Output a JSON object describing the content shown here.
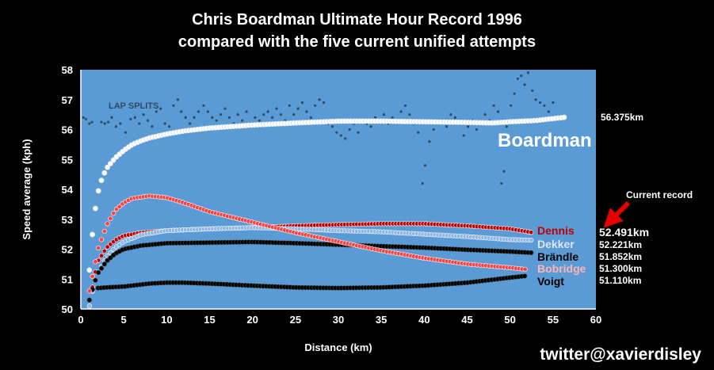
{
  "chart_data": {
    "type": "scatter",
    "title_lines": [
      "Chris Boardman Ultimate Hour Record 1996",
      "compared with the five current unified attempts"
    ],
    "xlabel": "Distance (km)",
    "ylabel": "Speed average (kph)",
    "xlim": [
      0,
      60
    ],
    "ylim": [
      50,
      58
    ],
    "x_ticks": [
      0,
      5,
      10,
      15,
      20,
      25,
      30,
      35,
      40,
      45,
      50,
      55,
      60
    ],
    "y_ticks": [
      50,
      51,
      52,
      53,
      54,
      55,
      56,
      57,
      58
    ],
    "plot_background": "#5b9bd5",
    "grid": false,
    "annotations": {
      "lap_splits_label": "LAP SPLITS",
      "current_record_label": "Current record",
      "boardman_label": "Boardman"
    },
    "series": [
      {
        "name": "Boardman",
        "color": "#ffffff",
        "label_color": "#ffffff",
        "final_value": "56.375km",
        "points": [
          [
            1,
            51.3
          ],
          [
            1.5,
            53.0
          ],
          [
            2,
            53.9
          ],
          [
            2.5,
            54.4
          ],
          [
            3,
            54.7
          ],
          [
            4,
            55.05
          ],
          [
            5,
            55.3
          ],
          [
            6,
            55.5
          ],
          [
            7,
            55.62
          ],
          [
            8,
            55.72
          ],
          [
            10,
            55.85
          ],
          [
            12,
            55.95
          ],
          [
            15,
            56.05
          ],
          [
            20,
            56.15
          ],
          [
            25,
            56.22
          ],
          [
            30,
            56.28
          ],
          [
            35,
            56.28
          ],
          [
            40,
            56.26
          ],
          [
            45,
            56.24
          ],
          [
            48,
            56.22
          ],
          [
            50,
            56.26
          ],
          [
            53,
            56.3
          ],
          [
            56.4,
            56.41
          ]
        ]
      },
      {
        "name": "Dennis",
        "color": "#c00000",
        "label_color": "#c00000",
        "final_value": "52.491km",
        "points": [
          [
            1,
            50.1
          ],
          [
            1.5,
            51.0
          ],
          [
            2,
            51.6
          ],
          [
            3,
            52.05
          ],
          [
            4,
            52.3
          ],
          [
            5,
            52.45
          ],
          [
            7,
            52.55
          ],
          [
            10,
            52.62
          ],
          [
            15,
            52.68
          ],
          [
            20,
            52.72
          ],
          [
            25,
            52.78
          ],
          [
            30,
            52.82
          ],
          [
            35,
            52.85
          ],
          [
            40,
            52.85
          ],
          [
            45,
            52.78
          ],
          [
            50,
            52.68
          ],
          [
            52.5,
            52.56
          ]
        ]
      },
      {
        "name": "Dekker",
        "color": "#8eb4e3",
        "label_color": "#dbe5f1",
        "final_value": "52.221km",
        "points": [
          [
            1,
            50.1
          ],
          [
            1.5,
            50.8
          ],
          [
            2,
            51.2
          ],
          [
            3,
            51.75
          ],
          [
            4,
            52.05
          ],
          [
            5,
            52.25
          ],
          [
            7,
            52.48
          ],
          [
            10,
            52.62
          ],
          [
            15,
            52.68
          ],
          [
            20,
            52.72
          ],
          [
            25,
            52.68
          ],
          [
            30,
            52.62
          ],
          [
            35,
            52.58
          ],
          [
            40,
            52.5
          ],
          [
            45,
            52.42
          ],
          [
            50,
            52.32
          ],
          [
            52.5,
            52.3
          ]
        ]
      },
      {
        "name": "Brändle",
        "color": "#000000",
        "label_color": "#000000",
        "final_value": "51.852km",
        "points": [
          [
            1,
            50.3
          ],
          [
            1.5,
            50.8
          ],
          [
            2,
            51.2
          ],
          [
            3,
            51.6
          ],
          [
            4,
            51.85
          ],
          [
            5,
            52.0
          ],
          [
            7,
            52.12
          ],
          [
            10,
            52.2
          ],
          [
            15,
            52.22
          ],
          [
            20,
            52.24
          ],
          [
            25,
            52.2
          ],
          [
            30,
            52.15
          ],
          [
            35,
            52.1
          ],
          [
            40,
            52.05
          ],
          [
            45,
            51.98
          ],
          [
            50,
            51.92
          ],
          [
            52.5,
            51.88
          ]
        ]
      },
      {
        "name": "Bobridge",
        "color": "#ff4040",
        "label_color": "#ffb3b3",
        "final_value": "51.300km",
        "points": [
          [
            1,
            50.6
          ],
          [
            1.5,
            51.3
          ],
          [
            2,
            52.0
          ],
          [
            3,
            52.8
          ],
          [
            4,
            53.3
          ],
          [
            5,
            53.55
          ],
          [
            6,
            53.7
          ],
          [
            8,
            53.78
          ],
          [
            10,
            53.72
          ],
          [
            12,
            53.55
          ],
          [
            15,
            53.25
          ],
          [
            20,
            52.9
          ],
          [
            25,
            52.55
          ],
          [
            30,
            52.25
          ],
          [
            35,
            51.95
          ],
          [
            40,
            51.7
          ],
          [
            45,
            51.5
          ],
          [
            50,
            51.38
          ],
          [
            52,
            51.32
          ]
        ]
      },
      {
        "name": "Voigt",
        "color": "#000000",
        "label_color": "#000000",
        "final_value": "51.110km",
        "points": [
          [
            2,
            50.7
          ],
          [
            3,
            50.72
          ],
          [
            5,
            50.75
          ],
          [
            8,
            50.85
          ],
          [
            10,
            50.88
          ],
          [
            12,
            50.88
          ],
          [
            15,
            50.85
          ],
          [
            20,
            50.78
          ],
          [
            25,
            50.72
          ],
          [
            30,
            50.7
          ],
          [
            35,
            50.72
          ],
          [
            40,
            50.78
          ],
          [
            45,
            50.88
          ],
          [
            50,
            51.05
          ],
          [
            52,
            51.11
          ]
        ]
      }
    ],
    "lap_splits": [
      [
        0.3,
        56.4
      ],
      [
        0.6,
        56.35
      ],
      [
        1,
        56.2
      ],
      [
        1.3,
        56.25
      ],
      [
        2.4,
        56.25
      ],
      [
        2.8,
        56.2
      ],
      [
        3.2,
        56.25
      ],
      [
        3.6,
        56.4
      ],
      [
        4.1,
        56.1
      ],
      [
        4.6,
        56.2
      ],
      [
        5.2,
        55.9
      ],
      [
        5.8,
        56.35
      ],
      [
        6.3,
        56.4
      ],
      [
        6.8,
        56.2
      ],
      [
        7.3,
        56.5
      ],
      [
        7.8,
        56.3
      ],
      [
        8.3,
        56.1
      ],
      [
        8.8,
        56.6
      ],
      [
        9.3,
        56.7
      ],
      [
        9.8,
        56.2
      ],
      [
        10.3,
        56.1
      ],
      [
        10.8,
        56.8
      ],
      [
        11.3,
        57.0
      ],
      [
        11.7,
        56.6
      ],
      [
        12.2,
        56.4
      ],
      [
        12.7,
        56.2
      ],
      [
        13.2,
        56.4
      ],
      [
        13.7,
        56.6
      ],
      [
        14.3,
        56.8
      ],
      [
        14.8,
        56.6
      ],
      [
        15.3,
        56.4
      ],
      [
        15.8,
        56.3
      ],
      [
        16.3,
        56.5
      ],
      [
        16.8,
        56.7
      ],
      [
        17.3,
        56.4
      ],
      [
        17.8,
        56.2
      ],
      [
        18.3,
        56.5
      ],
      [
        18.8,
        56.3
      ],
      [
        19.3,
        56.6
      ],
      [
        19.8,
        56.2
      ],
      [
        20.3,
        56.4
      ],
      [
        20.8,
        56.3
      ],
      [
        21.3,
        56.5
      ],
      [
        21.8,
        56.6
      ],
      [
        22.3,
        56.4
      ],
      [
        22.8,
        56.7
      ],
      [
        23.3,
        56.5
      ],
      [
        23.8,
        56.3
      ],
      [
        24.3,
        56.8
      ],
      [
        24.8,
        56.5
      ],
      [
        25.3,
        56.7
      ],
      [
        25.8,
        56.9
      ],
      [
        26.3,
        56.6
      ],
      [
        26.8,
        56.4
      ],
      [
        27.3,
        56.8
      ],
      [
        27.8,
        57.0
      ],
      [
        28.3,
        56.9
      ],
      [
        28.8,
        56.2
      ],
      [
        29.3,
        56.1
      ],
      [
        29.8,
        55.9
      ],
      [
        30.3,
        55.8
      ],
      [
        30.8,
        55.7
      ],
      [
        31.3,
        56.0
      ],
      [
        31.8,
        56.2
      ],
      [
        32.3,
        55.9
      ],
      [
        32.8,
        56.3
      ],
      [
        33.3,
        56.2
      ],
      [
        33.8,
        56.1
      ],
      [
        34.3,
        56.4
      ],
      [
        34.8,
        56.3
      ],
      [
        35.3,
        56.5
      ],
      [
        35.8,
        56.2
      ],
      [
        36.3,
        56.4
      ],
      [
        36.8,
        56.3
      ],
      [
        37.3,
        56.6
      ],
      [
        37.8,
        56.8
      ],
      [
        38.3,
        56.5
      ],
      [
        38.8,
        56.2
      ],
      [
        39.3,
        55.9
      ],
      [
        39.8,
        54.2
      ],
      [
        40.1,
        54.8
      ],
      [
        40.6,
        55.6
      ],
      [
        41.1,
        56.0
      ],
      [
        41.6,
        56.2
      ],
      [
        42.1,
        56.3
      ],
      [
        42.6,
        56.1
      ],
      [
        43.1,
        56.5
      ],
      [
        43.6,
        56.4
      ],
      [
        44.1,
        56.2
      ],
      [
        44.6,
        55.8
      ],
      [
        45.1,
        56.1
      ],
      [
        45.6,
        56.3
      ],
      [
        46.1,
        56.0
      ],
      [
        46.6,
        56.2
      ],
      [
        47.1,
        56.5
      ],
      [
        47.6,
        56.3
      ],
      [
        48.1,
        56.8
      ],
      [
        48.6,
        56.6
      ],
      [
        49.0,
        54.2
      ],
      [
        49.3,
        54.6
      ],
      [
        49.6,
        56.1
      ],
      [
        50.1,
        56.8
      ],
      [
        50.5,
        57.2
      ],
      [
        50.9,
        57.7
      ],
      [
        51.3,
        57.8
      ],
      [
        51.7,
        57.5
      ],
      [
        52.1,
        57.9
      ],
      [
        52.6,
        57.3
      ],
      [
        53.0,
        57.0
      ],
      [
        53.5,
        56.9
      ],
      [
        54.0,
        56.8
      ],
      [
        54.5,
        56.6
      ],
      [
        55.0,
        56.9
      ]
    ]
  },
  "footer": {
    "credit": "twitter@xavierdisley"
  }
}
